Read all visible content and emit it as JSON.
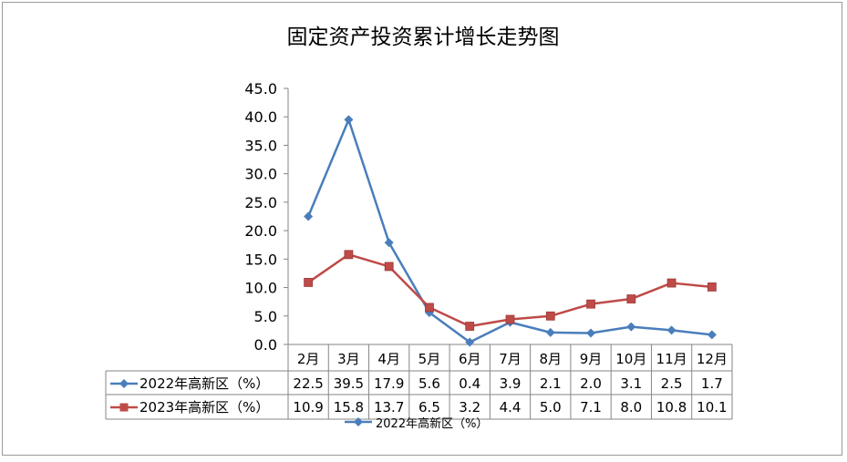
{
  "chart_data": {
    "type": "line",
    "title": "固定资产投资累计增长走势图",
    "categories": [
      "2月",
      "3月",
      "4月",
      "5月",
      "6月",
      "7月",
      "8月",
      "9月",
      "10月",
      "11月",
      "12月"
    ],
    "ylim": [
      0,
      45
    ],
    "yticks": [
      "0.0",
      "5.0",
      "10.0",
      "15.0",
      "20.0",
      "25.0",
      "30.0",
      "35.0",
      "40.0",
      "45.0"
    ],
    "series": [
      {
        "name": "2022年高新区（%）",
        "color": "#4a7ebb",
        "marker": "diamond",
        "values": [
          22.5,
          39.5,
          17.9,
          5.6,
          0.4,
          3.9,
          2.1,
          2.0,
          3.1,
          2.5,
          1.7
        ],
        "labels": [
          "22.5",
          "39.5",
          "17.9",
          "5.6",
          "0.4",
          "3.9",
          "2.1",
          "2.0",
          "3.1",
          "2.5",
          "1.7"
        ]
      },
      {
        "name": "2023年高新区（%）",
        "color": "#be4b48",
        "marker": "square",
        "values": [
          10.9,
          15.8,
          13.7,
          6.5,
          3.2,
          4.4,
          5.0,
          7.1,
          8.0,
          10.8,
          10.1
        ],
        "labels": [
          "10.9",
          "15.8",
          "13.7",
          "6.5",
          "3.2",
          "4.4",
          "5.0",
          "7.1",
          "8.0",
          "10.8",
          "10.1"
        ]
      }
    ],
    "legend": "bottom",
    "data_table": true,
    "legend_bottom_label": "2022年高新区（%）"
  }
}
